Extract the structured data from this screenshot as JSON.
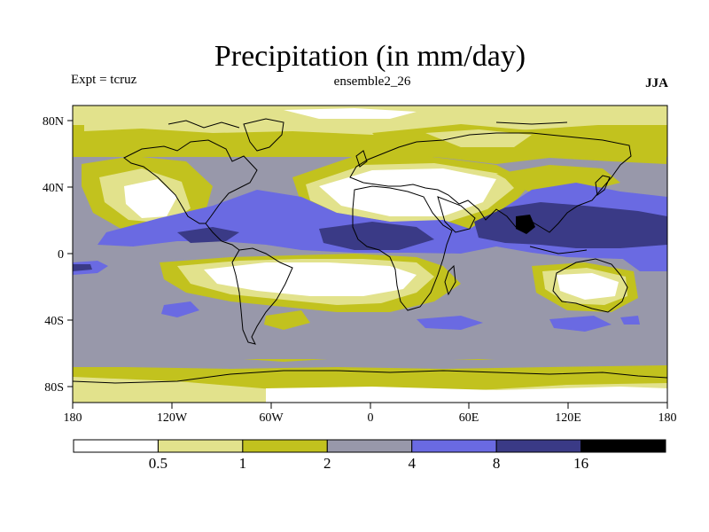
{
  "title": "Precipitation (in mm/day)",
  "left_label": "Expt = tcruz",
  "center_label": "ensemble2_26",
  "right_label": "JJA",
  "lat_labels": [
    "80N",
    "40N",
    "0",
    "40S",
    "80S"
  ],
  "lon_labels": [
    "180",
    "120W",
    "60W",
    "0",
    "60E",
    "120E",
    "180"
  ],
  "colorbar": {
    "colors": [
      "#ffffff",
      "#e2e28c",
      "#c2c21e",
      "#9898aa",
      "#6a6ae2",
      "#3a3a86",
      "#000000"
    ],
    "labels": [
      "0.5",
      "1",
      "2",
      "4",
      "8",
      "16"
    ]
  }
}
